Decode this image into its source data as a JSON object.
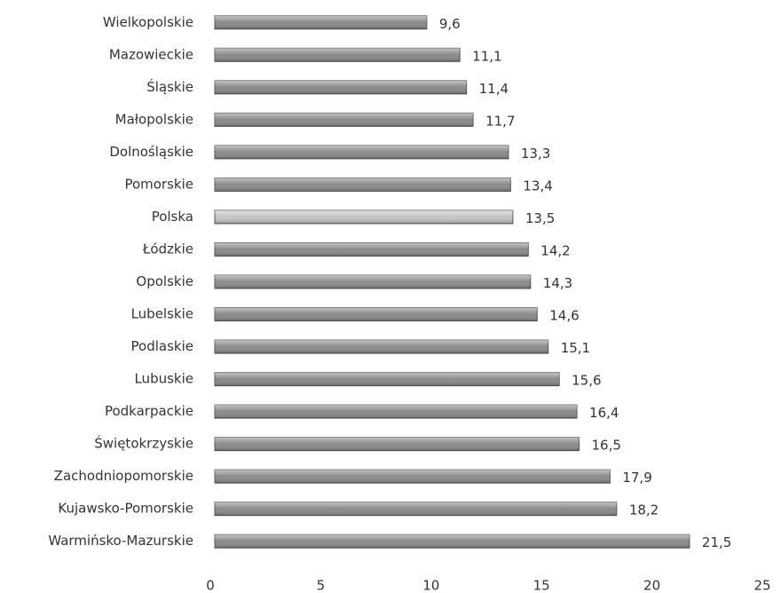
{
  "chart_data": {
    "type": "barh",
    "categories": [
      "Wielkopolskie",
      "Mazowieckie",
      "Śląskie",
      "Małopolskie",
      "Dolnośląskie",
      "Pomorskie",
      "Polska",
      "Łódzkie",
      "Opolskie",
      "Lubelskie",
      "Podlaskie",
      "Lubuskie",
      "Podkarpackie",
      "Świętokrzyskie",
      "Zachodniopomorskie",
      "Kujawsko-Pomorskie",
      "Warmińsko-Mazurskie"
    ],
    "values": [
      9.6,
      11.1,
      11.4,
      11.7,
      13.3,
      13.4,
      13.5,
      14.2,
      14.3,
      14.6,
      15.1,
      15.6,
      16.4,
      16.5,
      17.9,
      18.2,
      21.5
    ],
    "value_labels": [
      "9,6",
      "11,1",
      "11,4",
      "11,7",
      "13,3",
      "13,4",
      "13,5",
      "14,2",
      "14,3",
      "14,6",
      "15,1",
      "15,6",
      "16,4",
      "16,5",
      "17,9",
      "18,2",
      "21,5"
    ],
    "colors": [
      "#8a8a8a",
      "#8a8a8a",
      "#8a8a8a",
      "#8a8a8a",
      "#8a8a8a",
      "#8a8a8a",
      "#c4c4c4",
      "#8a8a8a",
      "#8a8a8a",
      "#8a8a8a",
      "#8a8a8a",
      "#8a8a8a",
      "#8a8a8a",
      "#8a8a8a",
      "#8a8a8a",
      "#8a8a8a",
      "#8a8a8a"
    ],
    "xlim": [
      0,
      25
    ],
    "xticks": [
      0,
      5,
      10,
      15,
      20,
      25
    ],
    "grid": false
  }
}
